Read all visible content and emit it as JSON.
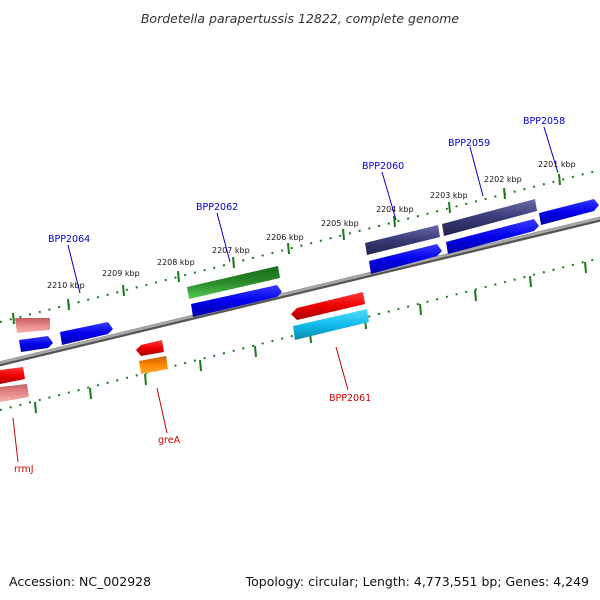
{
  "title": "Bordetella parapertussis 12822, complete genome",
  "footer": {
    "accession": "Accession: NC_002928",
    "stats": "Topology: circular; Length: 4,773,551 bp; Genes: 4,249"
  },
  "colors": {
    "backbone": "#8a8a8a",
    "tick_track": "#1a7a1a",
    "blue_gene": "#0000ee",
    "purple_gene": "#3a3a78",
    "green_gene": "#2a8a2a",
    "red_gene": "#ee0000",
    "pink_gene": "#e88888",
    "cyan_gene": "#11bbee",
    "orange_gene": "#ff8800",
    "label_blue": "#0000cc",
    "label_red": "#cc0000"
  },
  "kbp_ticks": [
    "2201 kbp",
    "2202 kbp",
    "2203 kbp",
    "2204 kbp",
    "2205 kbp",
    "2206 kbp",
    "2207 kbp",
    "2208 kbp",
    "2209 kbp",
    "2210 kbp"
  ],
  "gene_labels": [
    {
      "text": "BPP2058",
      "color": "blue"
    },
    {
      "text": "BPP2059",
      "color": "blue"
    },
    {
      "text": "BPP2060",
      "color": "blue"
    },
    {
      "text": "BPP2062",
      "color": "blue"
    },
    {
      "text": "BPP2064",
      "color": "blue"
    },
    {
      "text": "BPP2061",
      "color": "red"
    },
    {
      "text": "greA",
      "color": "red"
    },
    {
      "text": "rrmJ",
      "color": "red"
    }
  ]
}
